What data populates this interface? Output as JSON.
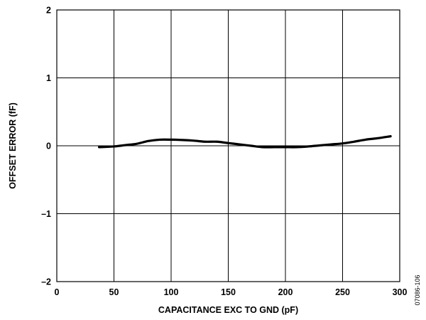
{
  "chart_data": {
    "type": "line",
    "title": "",
    "xlabel": "CAPACITANCE EXC TO GND (pF)",
    "ylabel": "OFFSET ERROR (fF)",
    "xlim": [
      0,
      300
    ],
    "ylim": [
      -2,
      2
    ],
    "xticks": [
      0,
      50,
      100,
      150,
      200,
      250,
      300
    ],
    "yticks": [
      -2,
      -1,
      0,
      1,
      2
    ],
    "xtick_labels": [
      "0",
      "50",
      "100",
      "150",
      "200",
      "250",
      "300"
    ],
    "ytick_labels": [
      "–2",
      "–1",
      "0",
      "1",
      "2"
    ],
    "grid": true,
    "legend": "none",
    "line_color": "#000000",
    "series": [
      {
        "x": [
          37,
          50,
          60,
          70,
          80,
          90,
          100,
          110,
          120,
          130,
          140,
          150,
          160,
          170,
          180,
          190,
          200,
          210,
          220,
          230,
          240,
          250,
          260,
          270,
          280,
          292
        ],
        "values": [
          -0.02,
          -0.01,
          0.01,
          0.03,
          0.07,
          0.09,
          0.09,
          0.085,
          0.075,
          0.06,
          0.06,
          0.04,
          0.02,
          0.0,
          -0.02,
          -0.02,
          -0.02,
          -0.02,
          -0.01,
          0.005,
          0.02,
          0.035,
          0.06,
          0.09,
          0.11,
          0.14
        ]
      }
    ]
  },
  "figure_id": "07086-106"
}
